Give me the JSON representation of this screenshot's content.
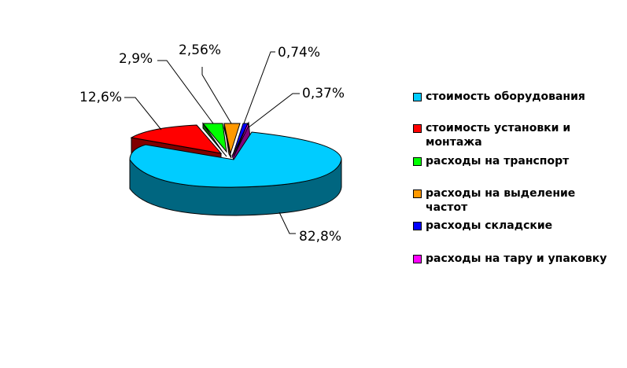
{
  "chart_data": {
    "type": "pie",
    "title": "",
    "categories": [
      "стоимость оборудования",
      "стоимость установки и монтажа",
      "расходы на транспорт",
      "расходы на выделение частот",
      "расходы складские",
      "расходы на тару и упаковку"
    ],
    "values": [
      82.8,
      12.6,
      2.9,
      2.56,
      0.74,
      0.37
    ],
    "labels": [
      "82,8%",
      "12,6%",
      "2,9%",
      "2,56%",
      "0,74%",
      "0,37%"
    ],
    "colors": [
      "#00CCFF",
      "#FF0000",
      "#00FF00",
      "#FF9900",
      "#0000FF",
      "#FF00FF"
    ],
    "legend_position": "right"
  }
}
